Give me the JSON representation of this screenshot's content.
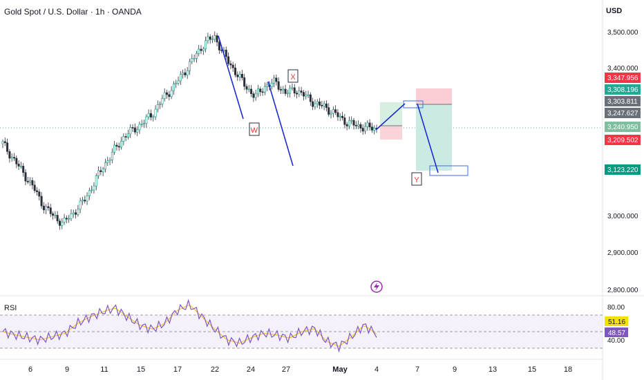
{
  "header": {
    "title": "Gold Spot / U.S. Dollar · 1h · OANDA",
    "currency": "USD"
  },
  "price_axis": {
    "ticks": [
      "3,500.000",
      "3,400.000",
      "3,000.000",
      "2,900.000",
      "2,800.000"
    ],
    "labels": [
      {
        "text": "3,347.956",
        "bg": "#f23645",
        "fg": "#ffffff"
      },
      {
        "text": "3,308.196",
        "bg": "#22ab94",
        "fg": "#ffffff"
      },
      {
        "text": "3,303.811",
        "bg": "#6b6f7a",
        "fg": "#ffffff"
      },
      {
        "text": "3,247.627",
        "bg": "#6b6f7a",
        "fg": "#ffffff"
      },
      {
        "text": "3,240.950",
        "bg": "#7fbf9f",
        "fg": "#ffffff"
      },
      {
        "text": "3,209.502",
        "bg": "#f23645",
        "fg": "#ffffff"
      },
      {
        "text": "3,123.220",
        "bg": "#089981",
        "fg": "#ffffff"
      }
    ]
  },
  "rsi_panel": {
    "label": "RSI",
    "axis_ticks": [
      "80.00",
      "40.00"
    ],
    "labels": [
      {
        "text": "51.16",
        "bg": "#f5e000",
        "fg": "#131722"
      },
      {
        "text": "48.57",
        "bg": "#7e57c2",
        "fg": "#ffffff"
      }
    ]
  },
  "time_axis": {
    "ticks": [
      "6",
      "9",
      "11",
      "15",
      "17",
      "22",
      "24",
      "27",
      "May",
      "4",
      "7",
      "9",
      "13",
      "15",
      "18"
    ]
  },
  "annotations": {
    "wave_labels": [
      "W",
      "X",
      "Y"
    ]
  },
  "icons": {
    "lightning": "lightning-icon"
  },
  "colors": {
    "price_line": "#6fa8a0",
    "wave_line": "#1d2bd1",
    "wave_label": "#e53935",
    "stop_zone": "#f7b9c0",
    "target_zone": "#b9e3d9",
    "rsi_line": "#7e57c2",
    "rsi_ma": "#f5b800"
  },
  "chart_data": {
    "type": "candlestick",
    "symbol": "Gold Spot / U.S. Dollar",
    "interval": "1h",
    "ylim": [
      2780,
      3540
    ],
    "rsi_ylim": [
      25,
      90
    ],
    "series": [
      {
        "name": "XAUUSD",
        "close": [
          3200,
          3160,
          3120,
          3080,
          3030,
          3000,
          2980,
          3010,
          3040,
          3090,
          3140,
          3180,
          3220,
          3240,
          3260,
          3290,
          3330,
          3360,
          3400,
          3440,
          3480,
          3495,
          3440,
          3400,
          3360,
          3330,
          3360,
          3370,
          3340,
          3350,
          3330,
          3310,
          3300,
          3280,
          3260,
          3250,
          3245,
          3241
        ]
      },
      {
        "name": "RSI",
        "values": [
          52,
          48,
          45,
          42,
          46,
          50,
          62,
          70,
          76,
          81,
          70,
          60,
          55,
          62,
          78,
          85,
          70,
          55,
          42,
          38,
          45,
          50,
          48,
          44,
          52,
          56,
          40,
          34,
          46,
          60,
          49
        ]
      }
    ]
  }
}
